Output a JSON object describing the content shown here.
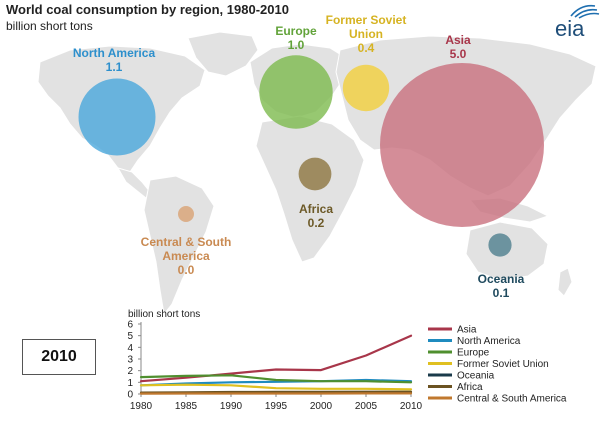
{
  "header": {
    "title": "World coal consumption by region, 1980-2010",
    "subtitle": "billion short tons",
    "logo_text": "eia"
  },
  "year_box": "2010",
  "bubbles": [
    {
      "key": "north_america",
      "label": [
        "North America"
      ],
      "value": "1.1",
      "color": "#4aa8dc",
      "label_color": "#2d8fcc"
    },
    {
      "key": "europe",
      "label": [
        "Europe"
      ],
      "value": "1.0",
      "color": "#7dba4e",
      "label_color": "#62a33a"
    },
    {
      "key": "former_soviet",
      "label": [
        "Former Soviet",
        "Union"
      ],
      "value": "0.4",
      "color": "#f2cf3c",
      "label_color": "#d6b322"
    },
    {
      "key": "asia",
      "label": [
        "Asia"
      ],
      "value": "5.0",
      "color": "#c9707e",
      "label_color": "#a8364a"
    },
    {
      "key": "africa",
      "label": [
        "Africa"
      ],
      "value": "0.2",
      "color": "#8d7540",
      "label_color": "#6d5a28"
    },
    {
      "key": "central_south_america",
      "label": [
        "Central & South",
        "America"
      ],
      "value": "0.0",
      "color": "#d9a274",
      "label_color": "#c98a52"
    },
    {
      "key": "oceania",
      "label": [
        "Oceania"
      ],
      "value": "0.1",
      "color": "#4f7f8f",
      "label_color": "#1f4a5e"
    }
  ],
  "chart_data": {
    "type": "line",
    "title": "",
    "ylabel": "billion short tons",
    "xlabel": "",
    "x": [
      1980,
      1985,
      1990,
      1995,
      2000,
      2005,
      2010
    ],
    "x_ticks": [
      "1980",
      "1985",
      "1990",
      "1995",
      "2000",
      "2005",
      "2010"
    ],
    "y_ticks": [
      "0",
      "1",
      "2",
      "3",
      "4",
      "5",
      "6"
    ],
    "xlim": [
      1980,
      2010
    ],
    "ylim": [
      0,
      6
    ],
    "grid": false,
    "legend_position": "right",
    "series": [
      {
        "name": "Asia",
        "color": "#a8364a",
        "values": [
          1.1,
          1.4,
          1.75,
          2.1,
          2.05,
          3.3,
          5.0
        ]
      },
      {
        "name": "North America",
        "color": "#1f8bbf",
        "values": [
          0.75,
          0.9,
          1.0,
          1.05,
          1.1,
          1.2,
          1.1
        ]
      },
      {
        "name": "Europe",
        "color": "#4f8f2f",
        "values": [
          1.45,
          1.55,
          1.6,
          1.2,
          1.1,
          1.1,
          1.0
        ]
      },
      {
        "name": "Former Soviet Union",
        "color": "#e0c020",
        "values": [
          0.75,
          0.8,
          0.75,
          0.5,
          0.45,
          0.45,
          0.4
        ]
      },
      {
        "name": "Oceania",
        "color": "#1a3a4a",
        "values": [
          0.08,
          0.1,
          0.12,
          0.13,
          0.14,
          0.15,
          0.15
        ]
      },
      {
        "name": "Africa",
        "color": "#6b5322",
        "values": [
          0.12,
          0.15,
          0.17,
          0.18,
          0.19,
          0.2,
          0.2
        ]
      },
      {
        "name": "Central & South America",
        "color": "#c0782e",
        "values": [
          0.03,
          0.04,
          0.04,
          0.04,
          0.04,
          0.05,
          0.05
        ]
      }
    ]
  }
}
